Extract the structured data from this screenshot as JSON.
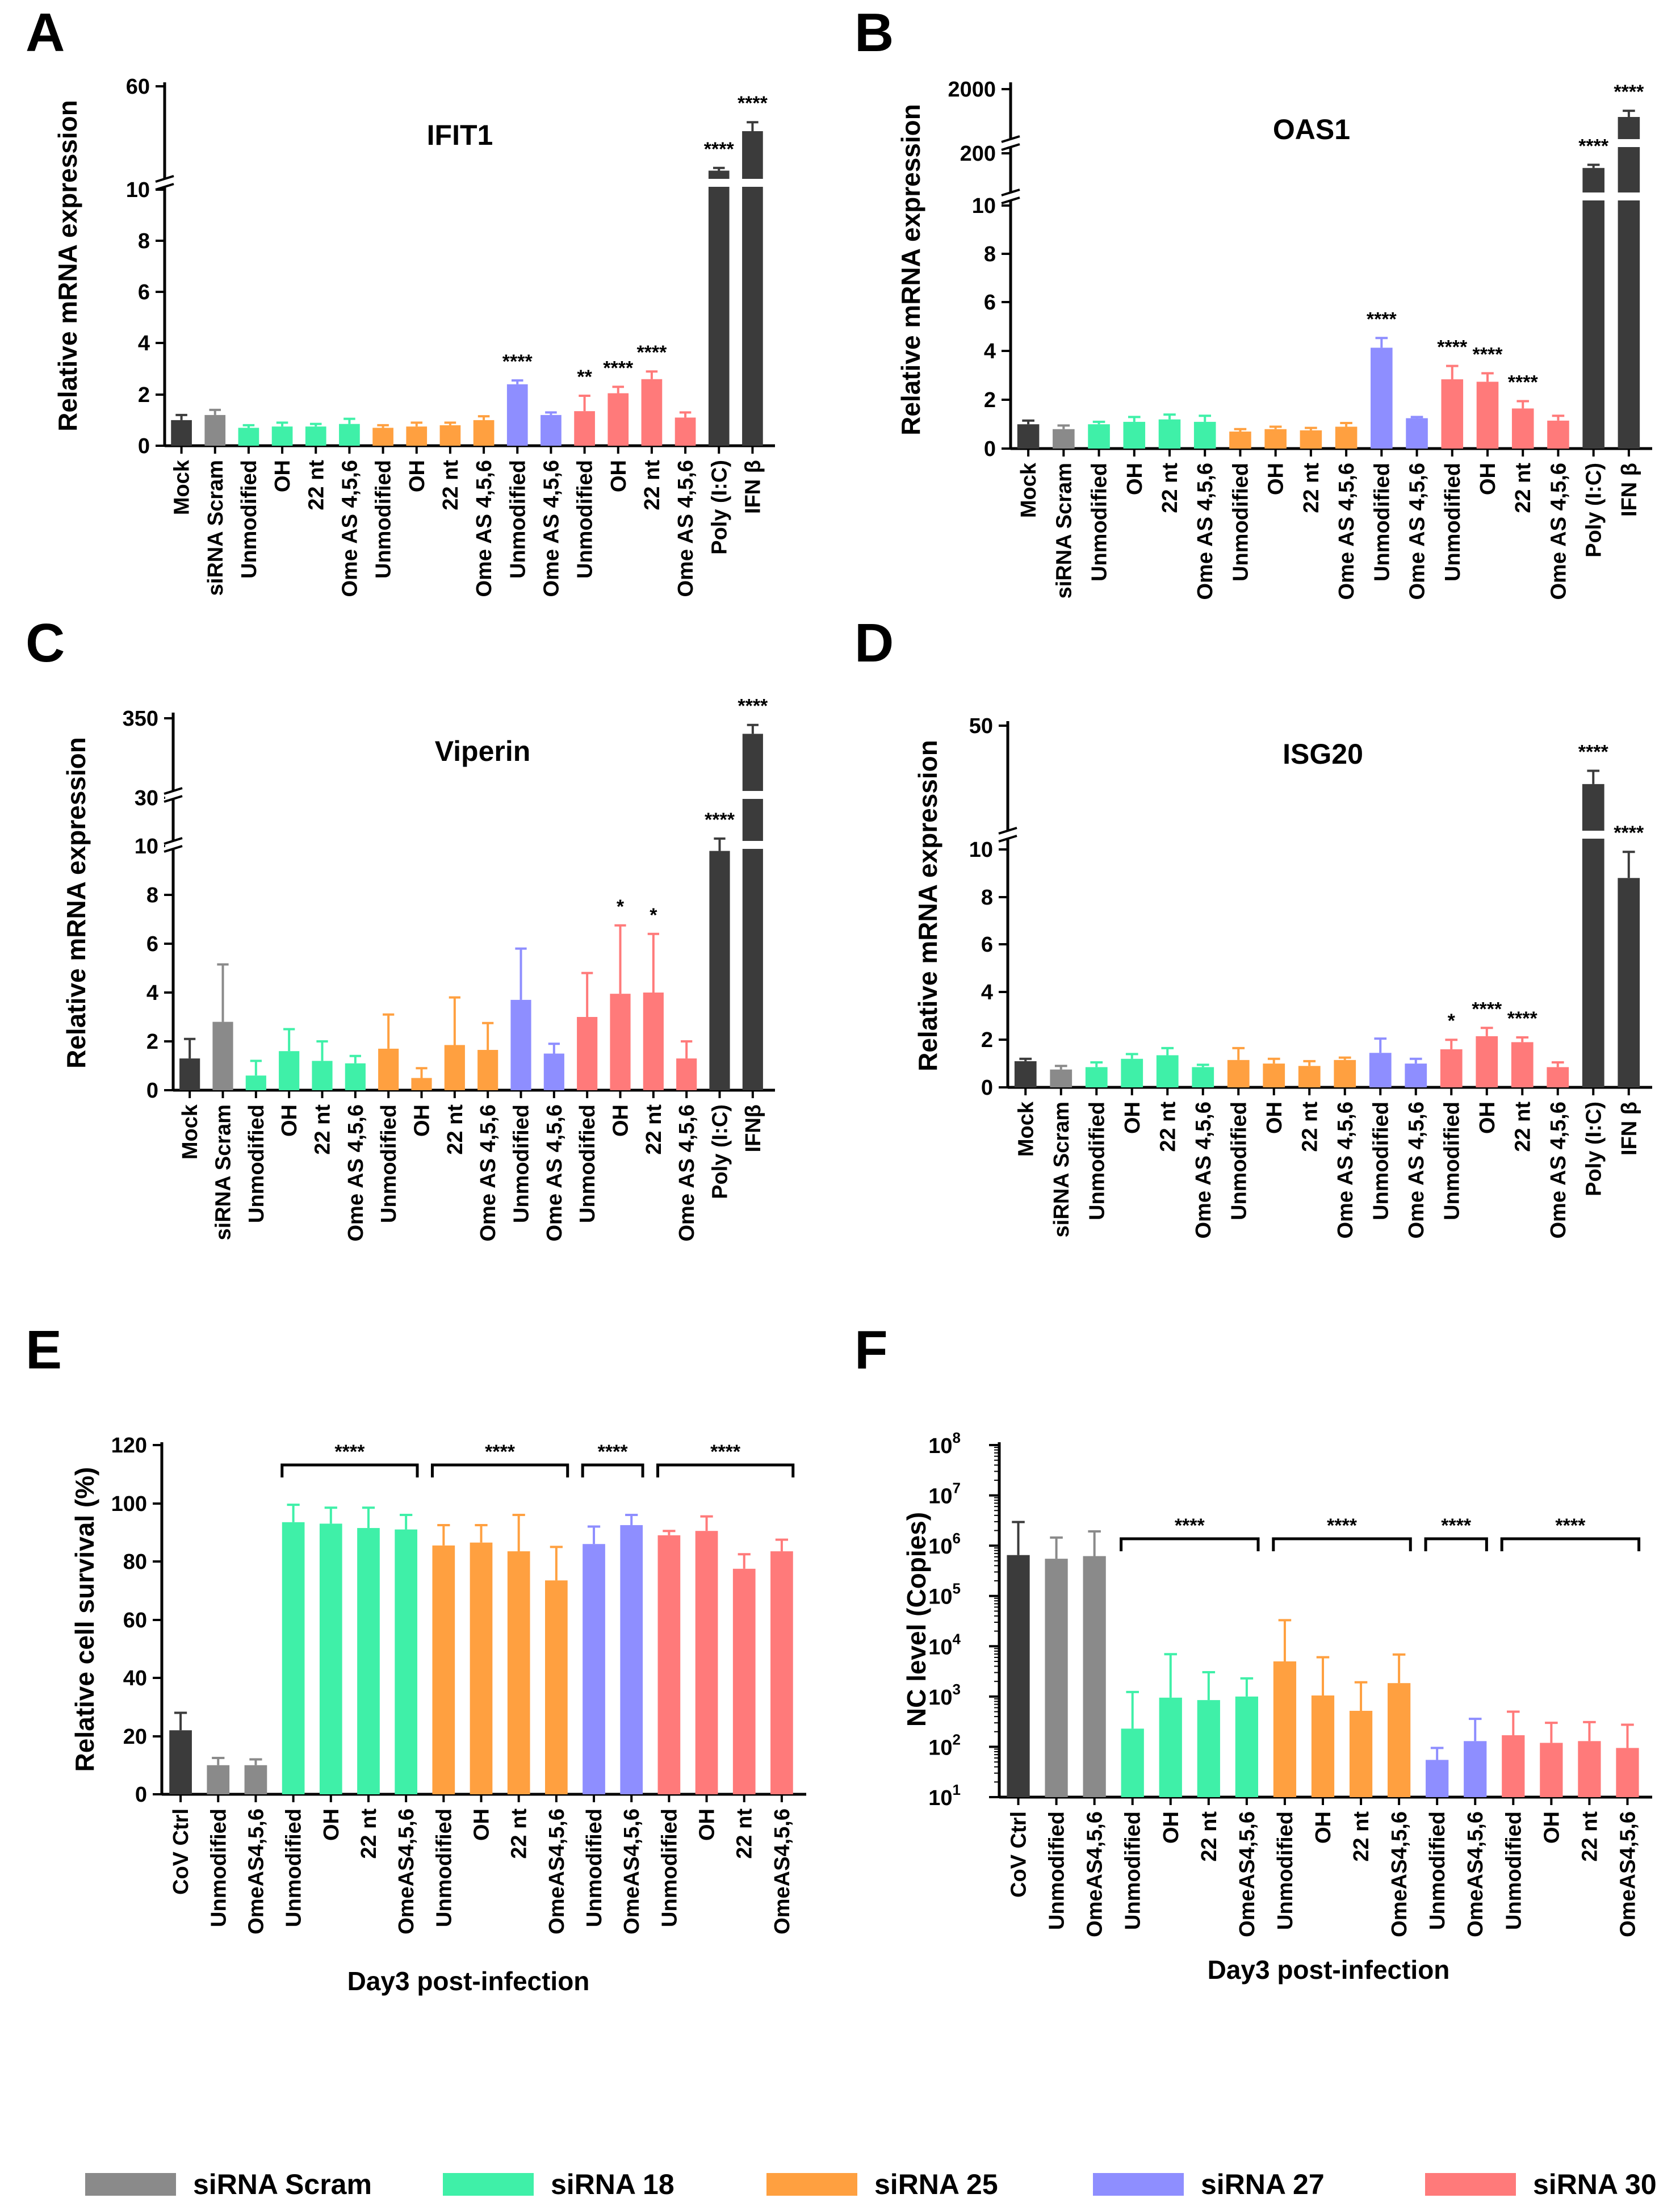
{
  "colors": {
    "mock": "#3b3b3b",
    "scram": "#8a8a8a",
    "s18": "#3ff0a8",
    "s25": "#ffa040",
    "s27": "#8e8eff",
    "s30": "#ff7a7a"
  },
  "legend": [
    {
      "label": "siRNA Scram",
      "color": "#8a8a8a"
    },
    {
      "label": "siRNA 18",
      "color": "#3ff0a8"
    },
    {
      "label": "siRNA 25",
      "color": "#ffa040"
    },
    {
      "label": "siRNA 27",
      "color": "#8e8eff"
    },
    {
      "label": "siRNA 30",
      "color": "#ff7a7a"
    }
  ],
  "chart_data": [
    {
      "panel": "A",
      "type": "bar",
      "title": "IFIT1",
      "ylabel": "Relative mRNA expression",
      "yticks": [
        "0",
        "2",
        "4",
        "6",
        "8",
        "10",
        "60"
      ],
      "categories": [
        "Mock",
        "siRNA Scram",
        "Unmodified",
        "OH",
        "22 nt",
        "Ome AS 4,5,6",
        "Unmodified",
        "OH",
        "22 nt",
        "Ome AS 4,5,6",
        "Unmodified",
        "Ome AS 4,5,6",
        "Unmodified",
        "OH",
        "22 nt",
        "Ome AS 4,5,6",
        "Poly (I:C)",
        "IFN β"
      ],
      "groups": [
        "mock",
        "scram",
        "s18",
        "s18",
        "s18",
        "s18",
        "s25",
        "s25",
        "s25",
        "s25",
        "s27",
        "s27",
        "s30",
        "s30",
        "s30",
        "s30",
        "mock",
        "mock"
      ],
      "values": [
        1.0,
        1.2,
        0.7,
        0.75,
        0.75,
        0.85,
        0.7,
        0.75,
        0.8,
        1.0,
        2.4,
        1.2,
        1.35,
        2.05,
        2.6,
        1.1,
        13,
        35
      ],
      "errors": [
        0.2,
        0.2,
        0.1,
        0.15,
        0.1,
        0.2,
        0.1,
        0.15,
        0.1,
        0.15,
        0.15,
        0.1,
        0.6,
        0.25,
        0.3,
        0.2,
        1.5,
        5
      ],
      "significance": [
        "",
        "",
        "",
        "",
        "",
        "",
        "",
        "",
        "",
        "",
        "****",
        "",
        "**",
        "****",
        "****",
        "",
        "****",
        "****"
      ]
    },
    {
      "panel": "B",
      "type": "bar",
      "title": "OAS1",
      "ylabel": "Relative mRNA expression",
      "yticks": [
        "0",
        "2",
        "4",
        "6",
        "8",
        "10",
        "200",
        "2000"
      ],
      "categories": [
        "Mock",
        "siRNA Scram",
        "Unmodified",
        "OH",
        "22 nt",
        "Ome AS 4,5,6",
        "Unmodified",
        "OH",
        "22 nt",
        "Ome AS 4,5,6",
        "Unmodified",
        "Ome AS 4,5,6",
        "Unmodified",
        "OH",
        "22 nt",
        "Ome AS 4,5,6",
        "Poly (I:C)",
        "IFN β"
      ],
      "groups": [
        "mock",
        "scram",
        "s18",
        "s18",
        "s18",
        "s18",
        "s25",
        "s25",
        "s25",
        "s25",
        "s27",
        "s27",
        "s30",
        "s30",
        "s30",
        "s30",
        "mock",
        "mock"
      ],
      "values": [
        1.0,
        0.8,
        1.0,
        1.1,
        1.2,
        1.1,
        0.7,
        0.8,
        0.75,
        0.9,
        4.15,
        1.25,
        2.85,
        2.75,
        1.65,
        1.15,
        130,
        1100
      ],
      "errors": [
        0.15,
        0.15,
        0.1,
        0.2,
        0.2,
        0.25,
        0.1,
        0.1,
        0.1,
        0.15,
        0.4,
        0.05,
        0.55,
        0.35,
        0.3,
        0.2,
        15,
        200
      ],
      "significance": [
        "",
        "",
        "",
        "",
        "",
        "",
        "",
        "",
        "",
        "",
        "****",
        "",
        "****",
        "****",
        "****",
        "",
        "****",
        "****"
      ]
    },
    {
      "panel": "C",
      "type": "bar",
      "title": "Viperin",
      "ylabel": "Relative mRNA expression",
      "yticks": [
        "0",
        "2",
        "4",
        "6",
        "8",
        "10",
        "30",
        "350"
      ],
      "categories": [
        "Mock",
        "siRNA Scram",
        "Unmodified",
        "OH",
        "22 nt",
        "Ome AS 4,5,6",
        "Unmodified",
        "OH",
        "22 nt",
        "Ome AS 4,5,6",
        "Unmodified",
        "Ome AS 4,5,6",
        "Unmodified",
        "OH",
        "22 nt",
        "Ome AS 4,5,6",
        "Poly (I:C)",
        "IFNβ"
      ],
      "groups": [
        "mock",
        "scram",
        "s18",
        "s18",
        "s18",
        "s18",
        "s25",
        "s25",
        "s25",
        "s25",
        "s27",
        "s27",
        "s30",
        "s30",
        "s30",
        "s30",
        "mock",
        "mock"
      ],
      "values": [
        1.3,
        2.8,
        0.6,
        1.6,
        1.2,
        1.1,
        1.7,
        0.5,
        1.85,
        1.65,
        3.7,
        1.5,
        3.0,
        3.95,
        4.0,
        1.3,
        9.8,
        280
      ],
      "errors": [
        0.8,
        2.35,
        0.6,
        0.9,
        0.8,
        0.3,
        1.4,
        0.4,
        1.95,
        1.1,
        2.1,
        0.4,
        1.8,
        2.8,
        2.4,
        0.7,
        0.5,
        40
      ],
      "significance": [
        "",
        "",
        "",
        "",
        "",
        "",
        "",
        "",
        "",
        "",
        "",
        "",
        "",
        "*",
        "*",
        "",
        "****",
        "****"
      ]
    },
    {
      "panel": "D",
      "type": "bar",
      "title": "ISG20",
      "ylabel": "Relative mRNA expression",
      "yticks": [
        "0",
        "2",
        "4",
        "6",
        "8",
        "10",
        "50"
      ],
      "categories": [
        "Mock",
        "siRNA Scram",
        "Unmodified",
        "OH",
        "22 nt",
        "Ome AS 4,5,6",
        "Unmodified",
        "OH",
        "22 nt",
        "Ome AS 4,5,6",
        "Unmodified",
        "Ome AS 4,5,6",
        "Unmodified",
        "OH",
        "22 nt",
        "Ome AS 4,5,6",
        "Poly (I:C)",
        "IFN β"
      ],
      "groups": [
        "mock",
        "scram",
        "s18",
        "s18",
        "s18",
        "s18",
        "s25",
        "s25",
        "s25",
        "s25",
        "s27",
        "s27",
        "s30",
        "s30",
        "s30",
        "s30",
        "mock",
        "mock"
      ],
      "values": [
        1.1,
        0.75,
        0.85,
        1.2,
        1.35,
        0.85,
        1.15,
        1.0,
        0.9,
        1.15,
        1.45,
        1.0,
        1.6,
        2.15,
        1.9,
        0.85,
        28,
        8.8
      ],
      "errors": [
        0.1,
        0.15,
        0.2,
        0.2,
        0.3,
        0.1,
        0.5,
        0.2,
        0.2,
        0.1,
        0.6,
        0.2,
        0.4,
        0.35,
        0.2,
        0.2,
        5,
        1.1
      ],
      "significance": [
        "",
        "",
        "",
        "",
        "",
        "",
        "",
        "",
        "",
        "",
        "",
        "",
        "*",
        "****",
        "****",
        "",
        "****",
        "****"
      ]
    },
    {
      "panel": "E",
      "type": "bar",
      "ylabel": "Relative cell survival (%)",
      "xlabel": "Day3 post-infection",
      "ylim": [
        0,
        120
      ],
      "yticks": [
        "0",
        "20",
        "40",
        "60",
        "80",
        "100",
        "120"
      ],
      "categories": [
        "CoV Ctrl",
        "Unmodified",
        "OmeAS4,5,6",
        "Unmodified",
        "OH",
        "22 nt",
        "OmeAS4,5,6",
        "Unmodified",
        "OH",
        "22 nt",
        "OmeAS4,5,6",
        "Unmodified",
        "OmeAS4,5,6",
        "Unmodified",
        "OH",
        "22 nt",
        "OmeAS4,5,6"
      ],
      "groups": [
        "mock",
        "scram",
        "scram",
        "s18",
        "s18",
        "s18",
        "s18",
        "s25",
        "s25",
        "s25",
        "s25",
        "s27",
        "s27",
        "s30",
        "s30",
        "s30",
        "s30"
      ],
      "values": [
        22,
        10,
        10,
        93.5,
        93,
        91.5,
        91,
        85.5,
        86.5,
        83.5,
        73.5,
        86,
        92.5,
        89,
        90.5,
        77.5,
        83.5
      ],
      "errors": [
        6,
        2.5,
        2,
        6,
        5.5,
        7,
        5,
        7,
        6,
        12.5,
        11.5,
        6,
        3.5,
        1.5,
        5,
        5,
        4
      ],
      "brackets": [
        {
          "label": "****"
        },
        {
          "label": "****"
        },
        {
          "label": "****"
        },
        {
          "label": "****"
        }
      ]
    },
    {
      "panel": "F",
      "type": "bar",
      "yscale": "log",
      "ylabel": "NC level (Copies)",
      "xlabel": "Day3 post-infection",
      "ylim": [
        10,
        100000000
      ],
      "ytick_base": "10",
      "ytick_exps": [
        "1",
        "2",
        "3",
        "4",
        "5",
        "6",
        "7",
        "8"
      ],
      "categories": [
        "CoV Ctrl",
        "Unmodified",
        "OmeAS4,5,6",
        "Unmodified",
        "OH",
        "22 nt",
        "OmeAS4,5,6",
        "Unmodified",
        "OH",
        "22 nt",
        "OmeAS4,5,6",
        "Unmodified",
        "OmeAS4,5,6",
        "Unmodified",
        "OH",
        "22 nt",
        "OmeAS4,5,6"
      ],
      "groups": [
        "mock",
        "scram",
        "scram",
        "s18",
        "s18",
        "s18",
        "s18",
        "s25",
        "s25",
        "s25",
        "s25",
        "s27",
        "s27",
        "s30",
        "s30",
        "s30",
        "s30"
      ],
      "values": [
        650000,
        550000,
        620000,
        230,
        950,
        850,
        1000,
        5000,
        1050,
        520,
        1850,
        55,
        130,
        170,
        120,
        130,
        95
      ],
      "errors": [
        2300000,
        900000,
        1300000,
        1000,
        6000,
        2200,
        1300,
        28000,
        5000,
        1400,
        5000,
        40,
        230,
        330,
        180,
        180,
        180
      ],
      "brackets": [
        {
          "label": "****"
        },
        {
          "label": "****"
        },
        {
          "label": "****"
        },
        {
          "label": "****"
        }
      ]
    }
  ]
}
